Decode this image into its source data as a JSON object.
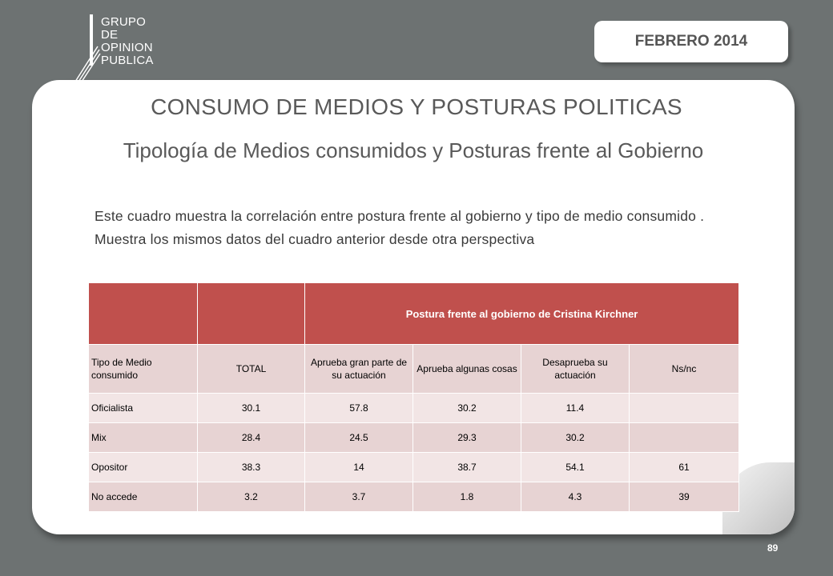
{
  "logo": {
    "lines": [
      "GRUPO",
      "DE",
      "OPINION",
      "PUBLICA"
    ]
  },
  "date_badge": "FEBRERO 2014",
  "title": "CONSUMO DE MEDIOS  Y POSTURAS POLITICAS",
  "subtitle": "Tipología de Medios consumidos y Posturas frente al Gobierno",
  "description": "Este cuadro muestra la correlación entre  postura frente al gobierno y tipo de medio consumido . Muestra los mismos datos del cuadro anterior desde otra perspectiva",
  "table": {
    "group_header": "Postura frente al gobierno de Cristina Kirchner",
    "columns": [
      "Tipo de Medio consumido",
      "TOTAL",
      "Aprueba gran parte de su actuación",
      "Aprueba algunas cosas",
      "Desaprueba su actuación",
      "Ns/nc"
    ],
    "rows": [
      [
        "Oficialista",
        "30.1",
        "57.8",
        "30.2",
        "11.4",
        ""
      ],
      [
        "Mix",
        "28.4",
        "24.5",
        "29.3",
        "30.2",
        ""
      ],
      [
        "Opositor",
        "38.3",
        "14",
        "38.7",
        "54.1",
        "61"
      ],
      [
        "No accede",
        "3.2",
        "3.7",
        "1.8",
        "4.3",
        "39"
      ]
    ]
  },
  "page_number": "89",
  "colors": {
    "background": "#6d7272",
    "header_red": "#c0504d",
    "row_light": "#f2e5e5",
    "row_dark": "#e7d3d3"
  }
}
